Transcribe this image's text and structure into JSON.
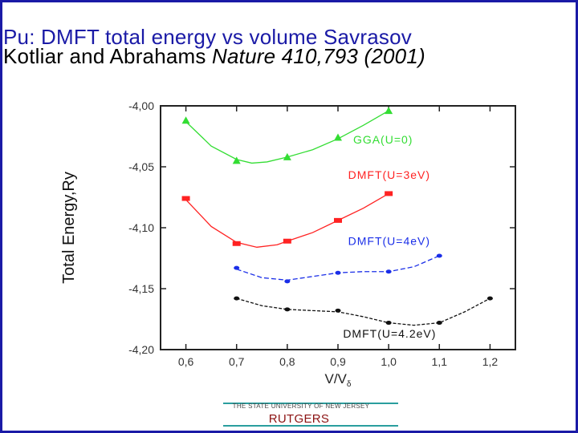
{
  "slide": {
    "title_line1": "Pu: DMFT total energy vs volume Savrasov",
    "title_line2_prefix": "Kotliar and Abrahams ",
    "title_line2_citation": "Nature 410,793 (2001)",
    "footer_university": "THE STATE UNIVERSITY OF NEW JERSEY",
    "footer_brand": "RUTGERS",
    "frame_color": "#1a1aa6"
  },
  "chart_data": {
    "type": "line",
    "xlabel": "V/V",
    "xlabel_sub": "δ",
    "ylabel": "Total Energy,Ry",
    "xlim": [
      0.55,
      1.25
    ],
    "ylim": [
      -4.2,
      -4.0
    ],
    "xticks": [
      0.6,
      0.7,
      0.8,
      0.9,
      1.0,
      1.1,
      1.2
    ],
    "yticks": [
      -4.0,
      -4.05,
      -4.1,
      -4.15,
      -4.2
    ],
    "xtick_labels": [
      "0,6",
      "0,7",
      "0,8",
      "0,9",
      "1,0",
      "1,1",
      "1,2"
    ],
    "ytick_labels": [
      "-4,00",
      "-4,05",
      "-4,10",
      "-4,15",
      "-4,20"
    ],
    "grid": false,
    "series": [
      {
        "name": "GGA(U=0)",
        "color": "#33dd33",
        "marker": "triangle",
        "points": [
          [
            0.6,
            -4.012
          ],
          [
            0.7,
            -4.045
          ],
          [
            0.8,
            -4.042
          ],
          [
            0.9,
            -4.026
          ],
          [
            1.0,
            -4.004
          ]
        ],
        "curve": [
          [
            0.6,
            -4.013
          ],
          [
            0.65,
            -4.033
          ],
          [
            0.7,
            -4.044
          ],
          [
            0.73,
            -4.047
          ],
          [
            0.76,
            -4.046
          ],
          [
            0.8,
            -4.042
          ],
          [
            0.85,
            -4.036
          ],
          [
            0.9,
            -4.027
          ],
          [
            0.95,
            -4.016
          ],
          [
            1.0,
            -4.004
          ]
        ],
        "label_anchor": [
          0.93,
          -4.031
        ]
      },
      {
        "name": "DMFT(U=3eV)",
        "color": "#ff2222",
        "marker": "square",
        "points": [
          [
            0.6,
            -4.076
          ],
          [
            0.7,
            -4.113
          ],
          [
            0.8,
            -4.111
          ],
          [
            0.9,
            -4.094
          ],
          [
            1.0,
            -4.072
          ]
        ],
        "curve": [
          [
            0.6,
            -4.077
          ],
          [
            0.65,
            -4.099
          ],
          [
            0.7,
            -4.112
          ],
          [
            0.74,
            -4.116
          ],
          [
            0.78,
            -4.114
          ],
          [
            0.8,
            -4.111
          ],
          [
            0.85,
            -4.104
          ],
          [
            0.9,
            -4.094
          ],
          [
            0.95,
            -4.084
          ],
          [
            1.0,
            -4.072
          ]
        ],
        "label_anchor": [
          0.92,
          -4.06
        ]
      },
      {
        "name": "DMFT(U=4eV)",
        "color": "#1a2ee8",
        "marker": "dot",
        "points": [
          [
            0.7,
            -4.133
          ],
          [
            0.8,
            -4.144
          ],
          [
            0.9,
            -4.137
          ],
          [
            1.0,
            -4.136
          ],
          [
            1.1,
            -4.123
          ]
        ],
        "curve": [
          [
            0.7,
            -4.134
          ],
          [
            0.75,
            -4.141
          ],
          [
            0.8,
            -4.143
          ],
          [
            0.85,
            -4.14
          ],
          [
            0.9,
            -4.137
          ],
          [
            0.95,
            -4.136
          ],
          [
            1.0,
            -4.136
          ],
          [
            1.05,
            -4.132
          ],
          [
            1.1,
            -4.123
          ]
        ],
        "label_anchor": [
          0.92,
          -4.114
        ]
      },
      {
        "name": "DMFT(U=4.2eV)",
        "color": "#111111",
        "marker": "dot",
        "points": [
          [
            0.7,
            -4.158
          ],
          [
            0.8,
            -4.167
          ],
          [
            0.9,
            -4.168
          ],
          [
            1.0,
            -4.178
          ],
          [
            1.1,
            -4.178
          ],
          [
            1.2,
            -4.158
          ]
        ],
        "curve": [
          [
            0.7,
            -4.158
          ],
          [
            0.75,
            -4.164
          ],
          [
            0.8,
            -4.167
          ],
          [
            0.85,
            -4.168
          ],
          [
            0.9,
            -4.169
          ],
          [
            0.95,
            -4.173
          ],
          [
            1.0,
            -4.178
          ],
          [
            1.05,
            -4.18
          ],
          [
            1.1,
            -4.178
          ],
          [
            1.15,
            -4.169
          ],
          [
            1.2,
            -4.158
          ]
        ],
        "label_anchor": [
          0.91,
          -4.19
        ]
      }
    ]
  }
}
